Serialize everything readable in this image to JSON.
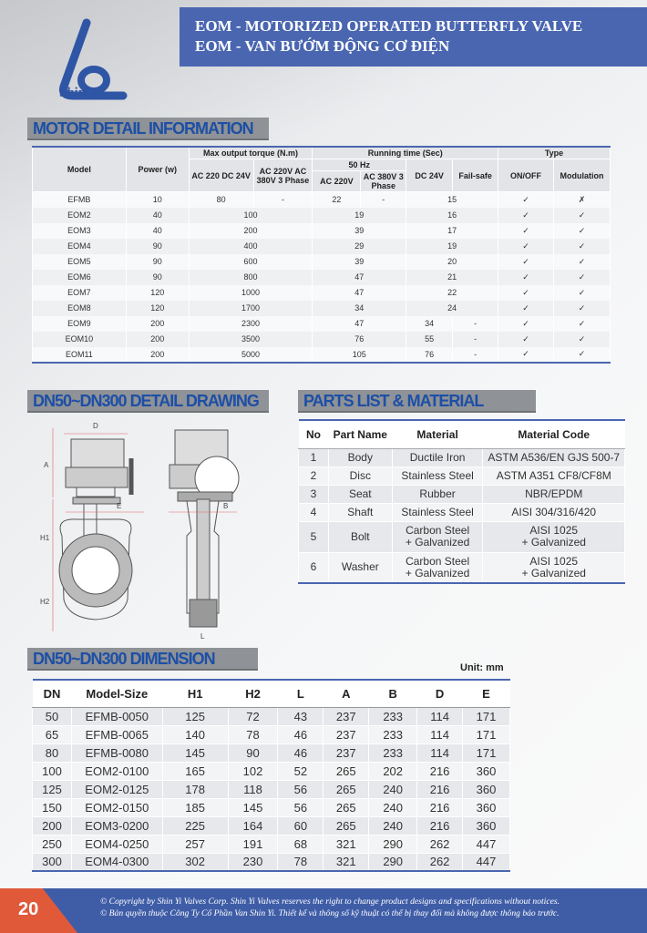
{
  "header": {
    "title_en": "EOM - MOTORIZED OPERATED BUTTERFLY VALVE",
    "title_vi": "EOM - VAN BƯỚM ĐỘNG CƠ ĐIỆN"
  },
  "logo": {
    "text": "Shin Yi"
  },
  "colors": {
    "brand_blue": "#4a66b0",
    "accent_orange": "#e05a3a",
    "section_title_bg": "#8f9296"
  },
  "motor": {
    "title": "MOTOR DETAIL INFORMATION",
    "headers": {
      "model": "Model",
      "power": "Power (w)",
      "torque": "Max output torque (N.m)",
      "running": "Running time (Sec)",
      "type": "Type",
      "t1": "AC 220 DC 24V",
      "t2": "AC 220V AC 380V 3 Phase",
      "hz": "50 Hz",
      "r1": "AC 220V",
      "r2": "AC 380V 3 Phase",
      "dc": "DC 24V",
      "fs": "Fail-safe",
      "onoff": "ON/OFF",
      "mod": "Modulation"
    },
    "rows": [
      [
        "EFMB",
        "10",
        "80",
        "-",
        "22",
        "-",
        "15",
        "✓",
        "✗"
      ],
      [
        "EOM2",
        "40",
        "100",
        "19",
        "16",
        "✓",
        "✓"
      ],
      [
        "EOM3",
        "40",
        "200",
        "39",
        "17",
        "✓",
        "✓"
      ],
      [
        "EOM4",
        "90",
        "400",
        "29",
        "19",
        "✓",
        "✓"
      ],
      [
        "EOM5",
        "90",
        "600",
        "39",
        "20",
        "✓",
        "✓"
      ],
      [
        "EOM6",
        "90",
        "800",
        "47",
        "21",
        "✓",
        "✓"
      ],
      [
        "EOM7",
        "120",
        "1000",
        "47",
        "22",
        "✓",
        "✓"
      ],
      [
        "EOM8",
        "120",
        "1700",
        "34",
        "24",
        "✓",
        "✓"
      ],
      [
        "EOM9",
        "200",
        "2300",
        "47",
        "34",
        "-",
        "✓",
        "✓"
      ],
      [
        "EOM10",
        "200",
        "3500",
        "76",
        "55",
        "-",
        "✓",
        "✓"
      ],
      [
        "EOM11",
        "200",
        "5000",
        "105",
        "76",
        "-",
        "✓",
        "✓"
      ]
    ]
  },
  "drawing": {
    "title": "DN50~DN300 DETAIL DRAWING",
    "labels": {
      "d": "D",
      "a": "A",
      "e": "E",
      "b": "B",
      "h1": "H1",
      "h2": "H2",
      "l": "L"
    }
  },
  "parts": {
    "title": "PARTS LIST & MATERIAL",
    "headers": [
      "No",
      "Part Name",
      "Material",
      "Material Code"
    ],
    "rows": [
      [
        "1",
        "Body",
        "Ductile Iron",
        "ASTM A536/EN GJS 500-7"
      ],
      [
        "2",
        "Disc",
        "Stainless Steel",
        "ASTM A351 CF8/CF8M"
      ],
      [
        "3",
        "Seat",
        "Rubber",
        "NBR/EPDM"
      ],
      [
        "4",
        "Shaft",
        "Stainless Steel",
        "AISI 304/316/420"
      ],
      [
        "5",
        "Bolt",
        "Carbon Steel\n+ Galvanized",
        "AISI 1025\n+ Galvanized"
      ],
      [
        "6",
        "Washer",
        "Carbon Steel\n+ Galvanized",
        "AISI 1025\n+ Galvanized"
      ]
    ]
  },
  "dimension": {
    "title": "DN50~DN300 DIMENSION",
    "unit": "Unit: mm",
    "headers": [
      "DN",
      "Model-Size",
      "H1",
      "H2",
      "L",
      "A",
      "B",
      "D",
      "E"
    ],
    "rows": [
      [
        "50",
        "EFMB-0050",
        "125",
        "72",
        "43",
        "237",
        "233",
        "114",
        "171"
      ],
      [
        "65",
        "EFMB-0065",
        "140",
        "78",
        "46",
        "237",
        "233",
        "114",
        "171"
      ],
      [
        "80",
        "EFMB-0080",
        "145",
        "90",
        "46",
        "237",
        "233",
        "114",
        "171"
      ],
      [
        "100",
        "EOM2-0100",
        "165",
        "102",
        "52",
        "265",
        "202",
        "216",
        "360"
      ],
      [
        "125",
        "EOM2-0125",
        "178",
        "118",
        "56",
        "265",
        "240",
        "216",
        "360"
      ],
      [
        "150",
        "EOM2-0150",
        "185",
        "145",
        "56",
        "265",
        "240",
        "216",
        "360"
      ],
      [
        "200",
        "EOM3-0200",
        "225",
        "164",
        "60",
        "265",
        "240",
        "216",
        "360"
      ],
      [
        "250",
        "EOM4-0250",
        "257",
        "191",
        "68",
        "321",
        "290",
        "262",
        "447"
      ],
      [
        "300",
        "EOM4-0300",
        "302",
        "230",
        "78",
        "321",
        "290",
        "262",
        "447"
      ]
    ]
  },
  "footer": {
    "page": "20",
    "copyright_en": "© Copyright by Shin Yi Valves Corp. Shin Yi Valves reserves the right to change product designs and specifications without notices.",
    "copyright_vi": "© Bản quyền thuộc Công Ty Cổ Phần Van Shin Yi. Thiết kế và thông số kỹ thuật có thể bị thay đổi mà không được thông báo trước."
  }
}
